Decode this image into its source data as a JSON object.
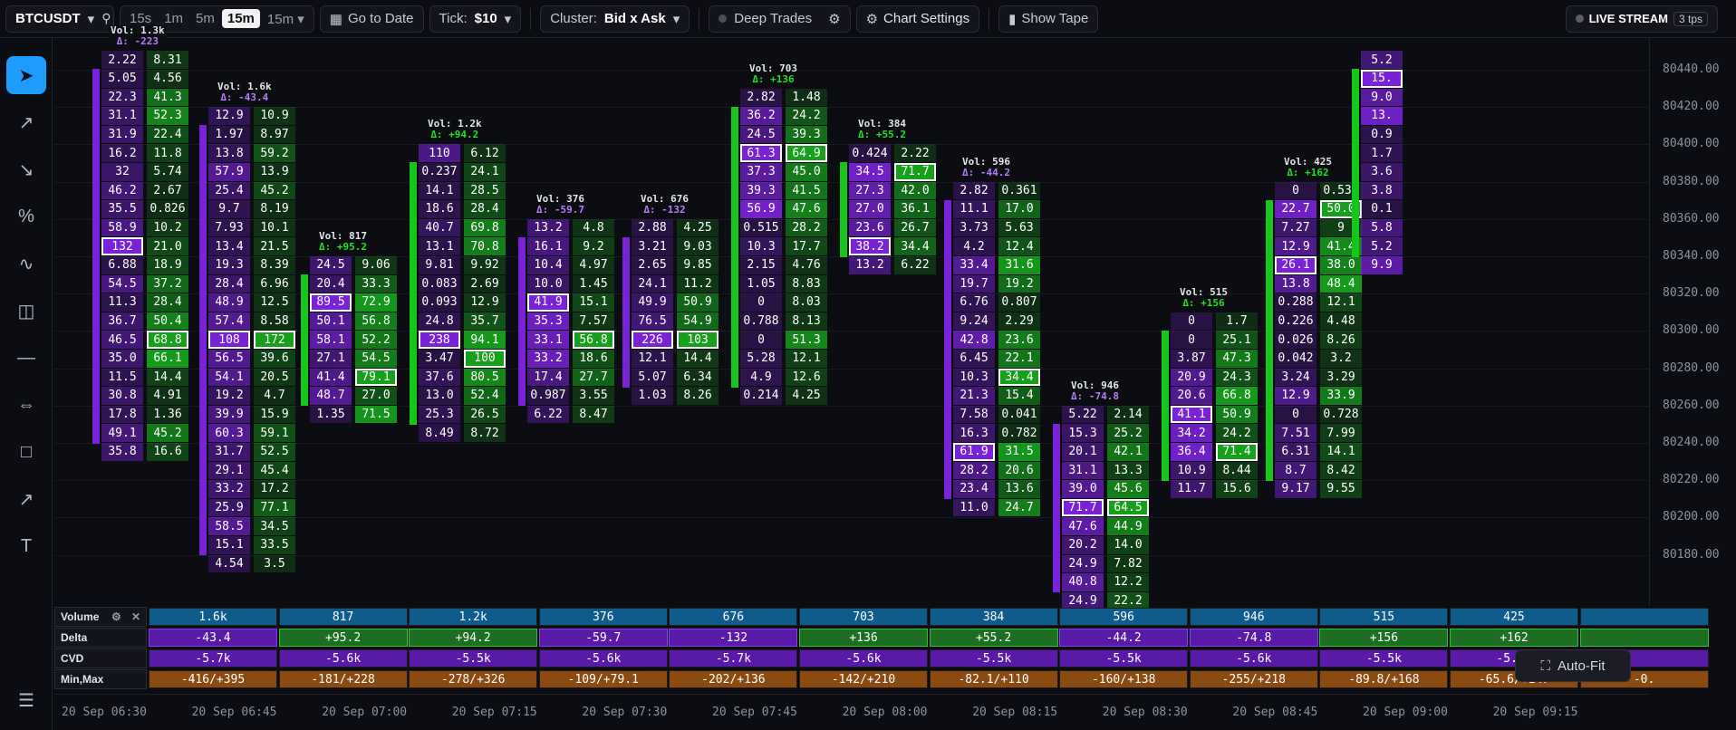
{
  "toolbar": {
    "symbol": "BTCUSDT",
    "timeframes": [
      "15s",
      "1m",
      "5m",
      "15m"
    ],
    "active_timeframe": "15m",
    "timeframe_dropdown": "15m",
    "goto_date": "Go to Date",
    "tick_label": "Tick:",
    "tick_value": "$10",
    "cluster_label": "Cluster:",
    "cluster_value": "Bid x Ask",
    "deep_trades": "Deep Trades",
    "chart_settings": "Chart Settings",
    "show_tape": "Show Tape",
    "live_stream": "LIVE STREAM",
    "tps": "3 tps"
  },
  "colors": {
    "bid": "#7a22d8",
    "ask": "#16c61c",
    "bg": "#0c0d12"
  },
  "price_axis": [
    "80440.00",
    "80420.00",
    "80400.00",
    "80380.00",
    "80360.00",
    "80340.00",
    "80320.00",
    "80300.00",
    "80280.00",
    "80260.00",
    "80240.00",
    "80220.00",
    "80200.00",
    "80180.00"
  ],
  "time_axis": [
    "20 Sep 06:30",
    "20 Sep 06:45",
    "20 Sep 07:00",
    "20 Sep 07:15",
    "20 Sep 07:30",
    "20 Sep 07:45",
    "20 Sep 08:00",
    "20 Sep 08:15",
    "20 Sep 08:30",
    "20 Sep 08:45",
    "20 Sep 09:00",
    "20 Sep 09:15"
  ],
  "candles": [
    {
      "vol": "Vol: 1.3k",
      "delta": "Δ: -223",
      "top_price": 80450,
      "bids": [
        "2.22",
        "5.05",
        "22.3",
        "31.1",
        "31.9",
        "16.2",
        "32",
        "46.2",
        "35.5",
        "58.9",
        "132",
        "6.88",
        "54.5",
        "11.3",
        "36.7",
        "46.5",
        "35.0",
        "11.5",
        "30.8",
        "17.8",
        "49.1",
        "35.8"
      ],
      "asks": [
        "8.31",
        "4.56",
        "41.3",
        "52.3",
        "22.4",
        "11.8",
        "5.74",
        "2.67",
        "0.826",
        "10.2",
        "21.0",
        "18.9",
        "37.2",
        "28.4",
        "50.4",
        "68.8",
        "66.1",
        "14.4",
        "4.91",
        "1.36",
        "45.2",
        "16.6"
      ]
    },
    {
      "vol": "Vol: 1.6k",
      "delta": "Δ: -43.4",
      "top_price": 80420,
      "bids": [
        "12.9",
        "1.97",
        "13.8",
        "57.9",
        "25.4",
        "9.7",
        "7.93",
        "13.4",
        "19.3",
        "28.4",
        "48.9",
        "57.4",
        "108",
        "56.5",
        "54.1",
        "19.2",
        "39.9",
        "60.3",
        "31.7",
        "29.1",
        "33.2",
        "25.9",
        "58.5",
        "15.1",
        "4.54"
      ],
      "asks": [
        "10.9",
        "8.97",
        "59.2",
        "13.9",
        "45.2",
        "8.19",
        "10.1",
        "21.5",
        "8.39",
        "6.96",
        "12.5",
        "8.58",
        "172",
        "39.6",
        "20.5",
        "4.7",
        "15.9",
        "59.1",
        "52.5",
        "45.4",
        "17.2",
        "77.1",
        "34.5",
        "33.5",
        "3.5"
      ]
    },
    {
      "vol": "Vol: 817",
      "delta": "Δ: +95.2",
      "top_price": 80340,
      "bids": [
        "24.5",
        "20.4",
        "89.5",
        "50.1",
        "58.1",
        "27.1",
        "41.4",
        "48.7",
        "1.35"
      ],
      "asks": [
        "9.06",
        "33.3",
        "72.9",
        "56.8",
        "52.2",
        "54.5",
        "79.1",
        "27.0",
        "71.5"
      ]
    },
    {
      "vol": "Vol: 1.2k",
      "delta": "Δ: +94.2",
      "top_price": 80400,
      "bids": [
        "110",
        "0.237",
        "14.1",
        "18.6",
        "40.7",
        "13.1",
        "9.81",
        "0.083",
        "0.093",
        "24.8",
        "238",
        "3.47",
        "37.6",
        "13.0",
        "25.3",
        "8.49"
      ],
      "asks": [
        "6.12",
        "24.1",
        "28.5",
        "28.4",
        "69.8",
        "70.8",
        "9.92",
        "2.69",
        "12.9",
        "35.7",
        "94.1",
        "100",
        "80.5",
        "52.4",
        "26.5",
        "8.72"
      ]
    },
    {
      "vol": "Vol: 376",
      "delta": "Δ: -59.7",
      "top_price": 80360,
      "bids": [
        "13.2",
        "16.1",
        "10.4",
        "10.0",
        "41.9",
        "35.3",
        "33.1",
        "33.2",
        "17.4",
        "0.987",
        "6.22"
      ],
      "asks": [
        "4.8",
        "9.2",
        "4.97",
        "1.45",
        "15.1",
        "7.57",
        "56.8",
        "18.6",
        "27.7",
        "3.55",
        "8.47"
      ]
    },
    {
      "vol": "Vol: 676",
      "delta": "Δ: -132",
      "top_price": 80360,
      "bids": [
        "2.88",
        "3.21",
        "2.65",
        "24.1",
        "49.9",
        "76.5",
        "226",
        "12.1",
        "5.07",
        "1.03"
      ],
      "asks": [
        "4.25",
        "9.03",
        "9.85",
        "11.2",
        "50.9",
        "54.9",
        "103",
        "14.4",
        "6.34",
        "8.26"
      ]
    },
    {
      "vol": "Vol: 703",
      "delta": "Δ: +136",
      "top_price": 80430,
      "bids": [
        "2.82",
        "36.2",
        "24.5",
        "61.3",
        "37.3",
        "39.3",
        "56.9",
        "0.515",
        "10.3",
        "2.15",
        "1.05",
        "0",
        "0.788",
        "0",
        "5.28",
        "4.9",
        "0.214"
      ],
      "asks": [
        "1.48",
        "24.2",
        "39.3",
        "64.9",
        "45.0",
        "41.5",
        "47.6",
        "28.2",
        "17.7",
        "4.76",
        "8.83",
        "8.03",
        "8.13",
        "51.3",
        "12.1",
        "12.6",
        "4.25"
      ]
    },
    {
      "vol": "Vol: 384",
      "delta": "Δ: +55.2",
      "top_price": 80400,
      "bids": [
        "0.424",
        "34.5",
        "27.3",
        "27.0",
        "23.6",
        "38.2",
        "13.2"
      ],
      "asks": [
        "2.22",
        "71.7",
        "42.0",
        "36.1",
        "26.7",
        "34.4",
        "6.22"
      ]
    },
    {
      "vol": "Vol: 596",
      "delta": "Δ: -44.2",
      "top_price": 80380,
      "bids": [
        "2.82",
        "11.1",
        "3.73",
        "4.2",
        "33.4",
        "19.7",
        "6.76",
        "9.24",
        "42.8",
        "6.45",
        "10.3",
        "21.3",
        "7.58",
        "16.3",
        "61.9",
        "28.2",
        "23.4",
        "11.0"
      ],
      "asks": [
        "0.361",
        "17.0",
        "5.63",
        "12.4",
        "31.6",
        "19.2",
        "0.807",
        "2.29",
        "23.6",
        "22.1",
        "34.4",
        "15.4",
        "0.041",
        "0.782",
        "31.5",
        "20.6",
        "13.6",
        "24.7"
      ]
    },
    {
      "vol": "Vol: 946",
      "delta": "Δ: -74.8",
      "top_price": 80260,
      "bids": [
        "5.22",
        "15.3",
        "20.1",
        "31.1",
        "39.0",
        "71.7",
        "47.6",
        "20.2",
        "24.9",
        "40.8",
        "24.9"
      ],
      "asks": [
        "2.14",
        "25.2",
        "42.1",
        "13.3",
        "45.6",
        "64.5",
        "44.9",
        "14.0",
        "7.82",
        "12.2",
        "22.2"
      ]
    },
    {
      "vol": "Vol: 515",
      "delta": "Δ: +156",
      "top_price": 80310,
      "bids": [
        "0",
        "0",
        "3.87",
        "20.9",
        "20.6",
        "41.1",
        "34.2",
        "36.4",
        "10.9",
        "11.7"
      ],
      "asks": [
        "1.7",
        "25.1",
        "47.3",
        "24.3",
        "66.8",
        "50.9",
        "24.2",
        "71.4",
        "8.44",
        "15.6"
      ]
    },
    {
      "vol": "Vol: 425",
      "delta": "Δ: +162",
      "top_price": 80380,
      "bids": [
        "0",
        "22.7",
        "7.27",
        "12.9",
        "26.1",
        "13.8",
        "0.288",
        "0.226",
        "0.026",
        "0.042",
        "3.24",
        "12.9",
        "0",
        "7.51",
        "6.31",
        "8.7",
        "9.17"
      ],
      "asks": [
        "0.535",
        "50.0",
        "9",
        "41.4",
        "38.0",
        "48.4",
        "12.1",
        "4.48",
        "8.26",
        "3.2",
        "3.29",
        "33.9",
        "0.728",
        "7.99",
        "14.1",
        "8.42",
        "9.55"
      ]
    },
    {
      "vol": "",
      "delta": "",
      "top_price": 80450,
      "bids": [
        "5.2",
        "15.",
        "9.0",
        "13.",
        "0.9",
        "1.7",
        "3.6",
        "3.8",
        "0.1",
        "5.8",
        "5.2",
        "9.9"
      ],
      "asks": []
    }
  ],
  "stats": {
    "labels": {
      "volume": "Volume",
      "delta": "Delta",
      "cvd": "CVD",
      "minmax": "Min,Max"
    },
    "volume": [
      "1.6k",
      "817",
      "1.2k",
      "376",
      "676",
      "703",
      "384",
      "596",
      "946",
      "515",
      "425",
      ""
    ],
    "delta": [
      "-43.4",
      "+95.2",
      "+94.2",
      "-59.7",
      "-132",
      "+136",
      "+55.2",
      "-44.2",
      "-74.8",
      "+156",
      "+162",
      ""
    ],
    "cvd": [
      "-5.7k",
      "-5.6k",
      "-5.5k",
      "-5.6k",
      "-5.7k",
      "-5.6k",
      "-5.5k",
      "-5.5k",
      "-5.6k",
      "-5.5k",
      "-5.4k",
      ""
    ],
    "minmax": [
      "-416/+395",
      "-181/+228",
      "-278/+326",
      "-109/+79.1",
      "-202/+136",
      "-142/+210",
      "-82.1/+110",
      "-160/+138",
      "-255/+218",
      "-89.8/+168",
      "-65.6/+147",
      "-0."
    ]
  },
  "auto_fit": "Auto-Fit"
}
